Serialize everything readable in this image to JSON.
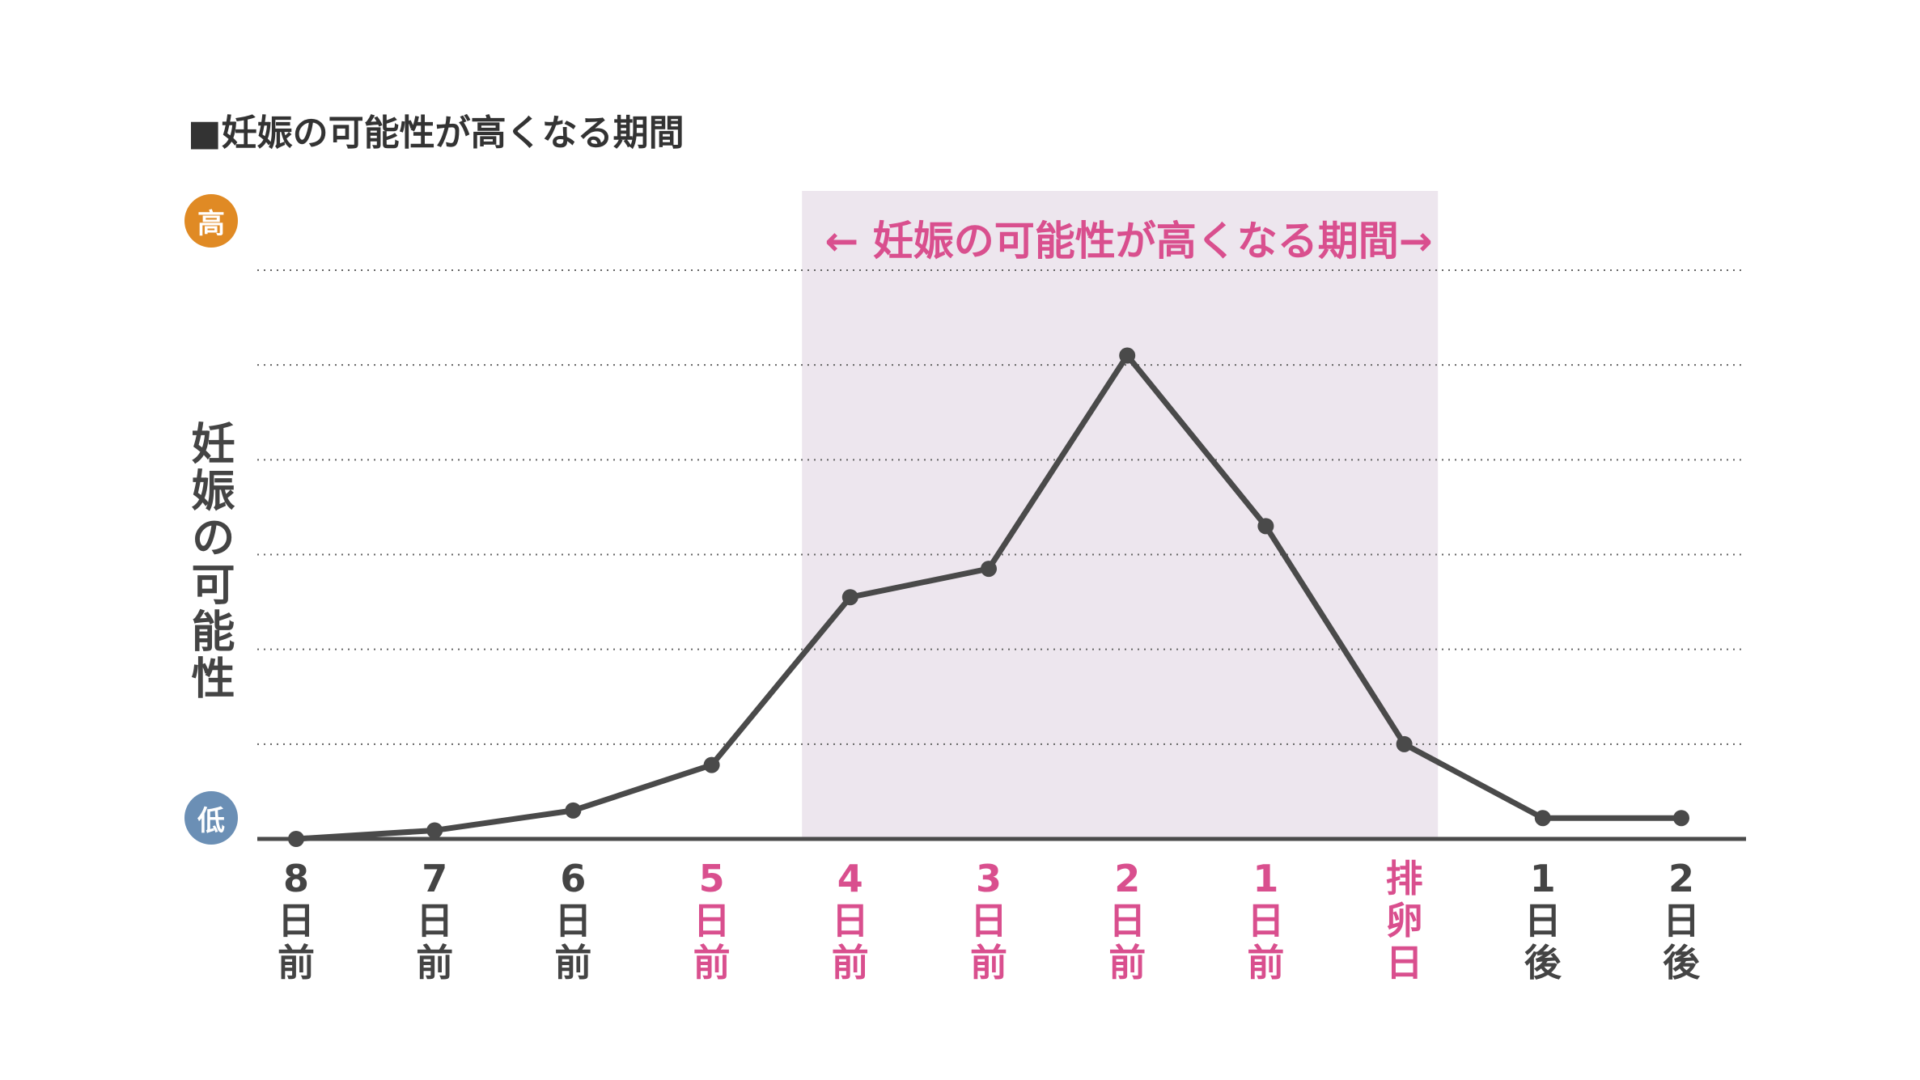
{
  "title": "■妊娠の可能性が高くなる期間",
  "y_axis": {
    "label": "妊娠の可能性",
    "high_badge": "高",
    "low_badge": "低"
  },
  "band_label": "← 妊娠の可能性が高くなる期間→",
  "colors": {
    "line": "#4a4a4a",
    "highlight_text": "#d94f8e",
    "band_fill": "#ede6ee",
    "axis_text": "#444444",
    "high_badge": "#e08a24",
    "low_badge": "#6b8fb5",
    "gridline": "#666666"
  },
  "chart_data": {
    "type": "line",
    "title": "■妊娠の可能性が高くなる期間",
    "ylabel": "妊娠の可能性",
    "ylim": [
      0,
      6
    ],
    "grid": true,
    "categories": [
      {
        "label": [
          "8",
          "日",
          "前"
        ],
        "highlight": false
      },
      {
        "label": [
          "7",
          "日",
          "前"
        ],
        "highlight": false
      },
      {
        "label": [
          "6",
          "日",
          "前"
        ],
        "highlight": false
      },
      {
        "label": [
          "5",
          "日",
          "前"
        ],
        "highlight": true
      },
      {
        "label": [
          "4",
          "日",
          "前"
        ],
        "highlight": true
      },
      {
        "label": [
          "3",
          "日",
          "前"
        ],
        "highlight": true
      },
      {
        "label": [
          "2",
          "日",
          "前"
        ],
        "highlight": true
      },
      {
        "label": [
          "1",
          "日",
          "前"
        ],
        "highlight": true
      },
      {
        "label": [
          "排",
          "卵",
          "日"
        ],
        "highlight": true
      },
      {
        "label": [
          "1",
          "日",
          "後"
        ],
        "highlight": false
      },
      {
        "label": [
          "2",
          "日",
          "後"
        ],
        "highlight": false
      }
    ],
    "series": [
      {
        "values": [
          0,
          0.09,
          0.3,
          0.78,
          2.55,
          2.85,
          5.1,
          3.3,
          1.0,
          0.22,
          0.22
        ]
      }
    ],
    "highlight_band": {
      "from_index": 3.5,
      "to_index": 8.5
    }
  }
}
